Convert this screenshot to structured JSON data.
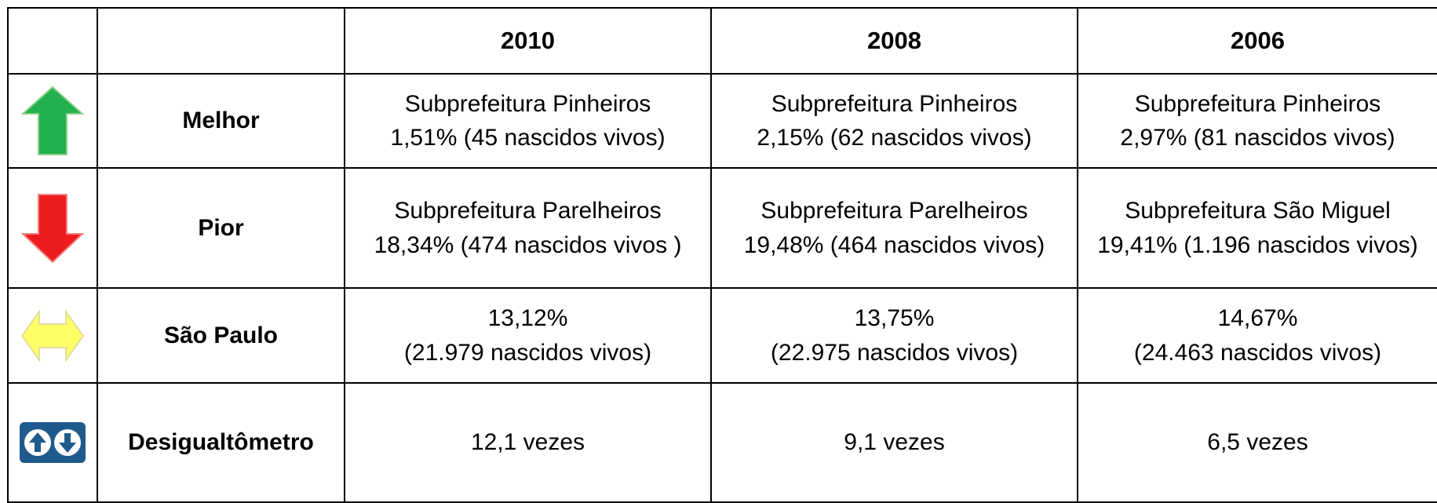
{
  "table": {
    "header": [
      "2010",
      "2008",
      "2006"
    ],
    "rows": [
      {
        "label": "Melhor",
        "cells": [
          [
            "Subprefeitura Pinheiros",
            "1,51% (45 nascidos vivos)"
          ],
          [
            "Subprefeitura Pinheiros",
            "2,15% (62 nascidos vivos)"
          ],
          [
            "Subprefeitura Pinheiros",
            "2,97% (81 nascidos vivos)"
          ]
        ]
      },
      {
        "label": "Pior",
        "cells": [
          [
            "Subprefeitura Parelheiros",
            "18,34% (474 nascidos vivos )"
          ],
          [
            "Subprefeitura Parelheiros",
            "19,48% (464 nascidos vivos)"
          ],
          [
            "Subprefeitura São Miguel",
            "19,41% (1.196 nascidos vivos)"
          ]
        ]
      },
      {
        "label": "São Paulo",
        "cells": [
          [
            "13,12%",
            "(21.979 nascidos vivos)"
          ],
          [
            "13,75%",
            "(22.975 nascidos vivos)"
          ],
          [
            "14,67%",
            "(24.463 nascidos vivos)"
          ]
        ]
      },
      {
        "label": "Desigualtômetro",
        "cells": [
          [
            "12,1 vezes"
          ],
          [
            "9,1 vezes"
          ],
          [
            "6,5 vezes"
          ]
        ]
      }
    ]
  }
}
